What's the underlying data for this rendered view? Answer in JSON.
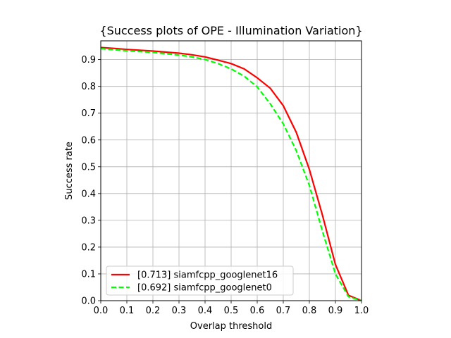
{
  "chart_data": {
    "type": "line",
    "title": "{Success plots of OPE - Illumination Variation}",
    "xlabel": "Overlap threshold",
    "ylabel": "Success rate",
    "xlim": [
      0,
      1
    ],
    "ylim": [
      0,
      0.97
    ],
    "xticks": [
      0.0,
      0.1,
      0.2,
      0.3,
      0.4,
      0.5,
      0.6,
      0.7,
      0.8,
      0.9,
      1.0
    ],
    "xtick_labels": [
      "0.0",
      "0.1",
      "0.2",
      "0.3",
      "0.4",
      "0.5",
      "0.6",
      "0.7",
      "0.8",
      "0.9",
      "1.0"
    ],
    "yticks": [
      0.0,
      0.1,
      0.2,
      0.3,
      0.4,
      0.5,
      0.6,
      0.7,
      0.8,
      0.9
    ],
    "ytick_labels": [
      "0.0",
      "0.1",
      "0.2",
      "0.3",
      "0.4",
      "0.5",
      "0.6",
      "0.7",
      "0.8",
      "0.9"
    ],
    "grid": true,
    "legend_position": "lower-left",
    "x": [
      0.0,
      0.05,
      0.1,
      0.15,
      0.2,
      0.25,
      0.3,
      0.35,
      0.4,
      0.45,
      0.5,
      0.55,
      0.6,
      0.65,
      0.7,
      0.75,
      0.8,
      0.85,
      0.9,
      0.95,
      1.0
    ],
    "series": [
      {
        "name": "[0.713] siamfcpp_googlenet16",
        "color": "#ff0000",
        "style": "solid",
        "values": [
          0.945,
          0.942,
          0.938,
          0.935,
          0.932,
          0.928,
          0.924,
          0.918,
          0.91,
          0.898,
          0.885,
          0.865,
          0.832,
          0.793,
          0.728,
          0.628,
          0.49,
          0.32,
          0.135,
          0.02,
          0.0
        ]
      },
      {
        "name": "[0.692] siamfcpp_googlenet0",
        "color": "#00ff00",
        "style": "dashed",
        "values": [
          0.941,
          0.937,
          0.933,
          0.93,
          0.927,
          0.922,
          0.917,
          0.91,
          0.9,
          0.885,
          0.865,
          0.838,
          0.798,
          0.735,
          0.66,
          0.56,
          0.43,
          0.26,
          0.1,
          0.015,
          0.0
        ]
      }
    ]
  }
}
